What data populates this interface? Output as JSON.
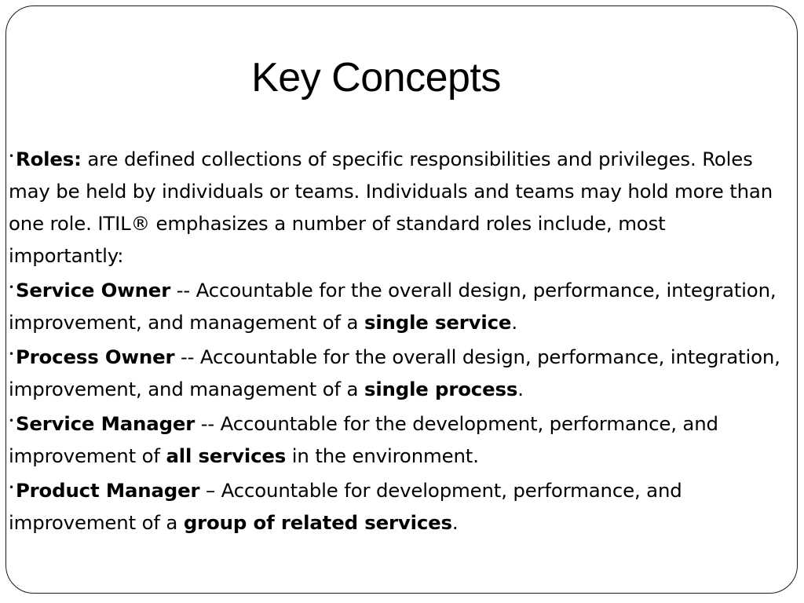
{
  "slide": {
    "title": "Key Concepts",
    "bullet_symbol": "•",
    "roles": {
      "term": "Roles:",
      "text": " are defined collections of specific responsibilities and privileges.  Roles may be held by individuals or teams.  Individuals and teams may hold more than one role.  ITIL® emphasizes a number of standard roles include, most importantly:"
    },
    "service_owner": {
      "term": "Service Owner",
      "text": "  --  Accountable for the overall design, performance, integration, improvement, and management of a ",
      "emphasis": "single service",
      "end": "."
    },
    "process_owner": {
      "term": "Process Owner",
      "text": "  --  Accountable for the overall design, performance, integration, improvement,  and management of a ",
      "emphasis": "single process",
      "end": "."
    },
    "service_manager": {
      "term": "Service Manager",
      "text": " -- Accountable for the development, performance, and improvement of ",
      "emphasis": "all services",
      "end": " in the environment."
    },
    "product_manager": {
      "term": "Product Manager",
      "text": " – Accountable for development, performance, and improvement of a ",
      "emphasis": "group of related services",
      "end": "."
    }
  }
}
